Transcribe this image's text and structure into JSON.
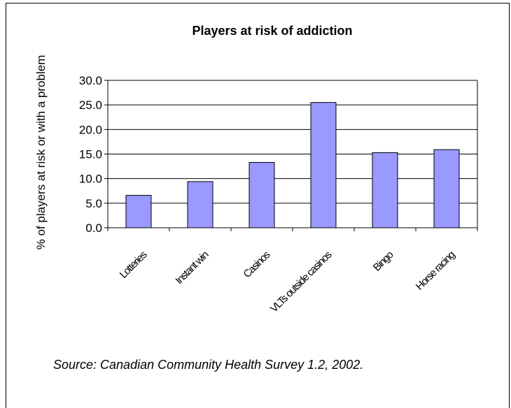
{
  "chart_data": {
    "type": "bar",
    "title": "Players at risk of addiction",
    "xlabel": "",
    "ylabel": "% of players at risk or with a problem",
    "categories": [
      "Lotteries",
      "Instant win",
      "Casinos",
      "VLTs outside casinos",
      "Bingo",
      "Horse racing"
    ],
    "values": [
      6.6,
      9.4,
      13.3,
      25.5,
      15.3,
      15.9
    ],
    "ylim": [
      0,
      30
    ],
    "yticks": [
      "0.0",
      "5.0",
      "10.0",
      "15.0",
      "20.0",
      "25.0",
      "30.0"
    ],
    "grid": "horizontal major gridlines",
    "legend": "none",
    "colors": {
      "bar_fill": "#9999ff",
      "bar_stroke": "#000000",
      "grid": "#000000"
    }
  },
  "footer": {
    "source": "Source:  Canadian Community Health Survey  1.2, 2002."
  }
}
